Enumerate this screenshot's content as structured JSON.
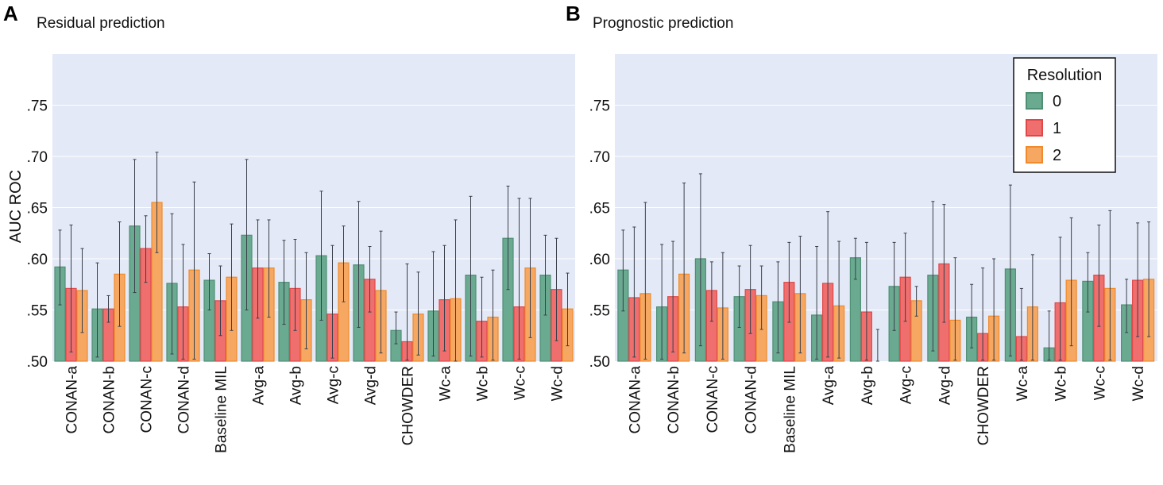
{
  "colors": {
    "plot_bg": "#e3e9f6",
    "grid": "#ffffff",
    "errorbar": "#3a3f4a",
    "series": [
      {
        "fill": "#6aaa91",
        "stroke": "#4f8f74"
      },
      {
        "fill": "#ef6f6f",
        "stroke": "#e04848"
      },
      {
        "fill": "#f6a862",
        "stroke": "#f08a2a"
      }
    ]
  },
  "legend": {
    "title": "Resolution",
    "placement": "top-right of panel B"
  },
  "chart_data": [
    {
      "type": "bar",
      "panel_letter": "A",
      "title": "Residual prediction",
      "xlabel": "",
      "ylabel": "AUC ROC",
      "ylim": [
        0.5,
        0.8
      ],
      "yticks": [
        0.5,
        0.55,
        0.6,
        0.65,
        0.7,
        0.75
      ],
      "ytick_labels": [
        ".50",
        ".55",
        ".60",
        ".65",
        ".70",
        ".75"
      ],
      "grid": true,
      "categories": [
        "CONAN-a",
        "CONAN-b",
        "CONAN-c",
        "CONAN-d",
        "Baseline MIL",
        "Avg-a",
        "Avg-b",
        "Avg-c",
        "Avg-d",
        "CHOWDER",
        "Wc-a",
        "Wc-b",
        "Wc-c",
        "Wc-d"
      ],
      "series": [
        {
          "name": "0",
          "values": [
            0.592,
            0.551,
            0.632,
            0.576,
            0.579,
            0.623,
            0.577,
            0.603,
            0.594,
            0.53,
            0.549,
            0.584,
            0.62,
            0.584
          ],
          "err_low": [
            0.555,
            0.504,
            0.567,
            0.507,
            0.55,
            0.55,
            0.536,
            0.54,
            0.533,
            0.517,
            0.505,
            0.505,
            0.57,
            0.545
          ],
          "err_high": [
            0.628,
            0.596,
            0.697,
            0.644,
            0.605,
            0.697,
            0.618,
            0.666,
            0.656,
            0.548,
            0.607,
            0.661,
            0.671,
            0.623
          ]
        },
        {
          "name": "1",
          "values": [
            0.571,
            0.551,
            0.61,
            0.553,
            0.559,
            0.591,
            0.571,
            0.546,
            0.58,
            0.519,
            0.56,
            0.539,
            0.553,
            0.57
          ],
          "err_low": [
            0.509,
            0.538,
            0.577,
            0.502,
            0.525,
            0.542,
            0.53,
            0.503,
            0.548,
            0.501,
            0.51,
            0.504,
            0.502,
            0.52
          ],
          "err_high": [
            0.633,
            0.564,
            0.642,
            0.614,
            0.593,
            0.638,
            0.619,
            0.613,
            0.612,
            0.595,
            0.613,
            0.582,
            0.659,
            0.62
          ]
        },
        {
          "name": "2",
          "values": [
            0.569,
            0.585,
            0.655,
            0.589,
            0.582,
            0.591,
            0.56,
            0.596,
            0.569,
            0.546,
            0.561,
            0.543,
            0.591,
            0.551
          ],
          "err_low": [
            0.528,
            0.534,
            0.606,
            0.502,
            0.53,
            0.543,
            0.512,
            0.558,
            0.508,
            0.506,
            0.5,
            0.501,
            0.523,
            0.515
          ],
          "err_high": [
            0.61,
            0.636,
            0.704,
            0.675,
            0.634,
            0.638,
            0.606,
            0.632,
            0.627,
            0.587,
            0.638,
            0.589,
            0.659,
            0.586
          ]
        }
      ]
    },
    {
      "type": "bar",
      "panel_letter": "B",
      "title": "Prognostic prediction",
      "xlabel": "",
      "ylabel": "",
      "ylim": [
        0.5,
        0.8
      ],
      "yticks": [
        0.5,
        0.55,
        0.6,
        0.65,
        0.7,
        0.75
      ],
      "ytick_labels": [
        ".50",
        ".55",
        ".60",
        ".65",
        ".70",
        ".75"
      ],
      "grid": true,
      "categories": [
        "CONAN-a",
        "CONAN-b",
        "CONAN-c",
        "CONAN-d",
        "Baseline MIL",
        "Avg-a",
        "Avg-b",
        "Avg-c",
        "Avg-d",
        "CHOWDER",
        "Wc-a",
        "Wc-b",
        "Wc-c",
        "Wc-d"
      ],
      "series": [
        {
          "name": "0",
          "values": [
            0.589,
            0.553,
            0.6,
            0.563,
            0.558,
            0.545,
            0.601,
            0.573,
            0.584,
            0.543,
            0.59,
            0.513,
            0.578,
            0.555
          ],
          "err_low": [
            0.549,
            0.502,
            0.515,
            0.533,
            0.508,
            0.502,
            0.58,
            0.53,
            0.51,
            0.513,
            0.505,
            0.501,
            0.548,
            0.528
          ],
          "err_high": [
            0.628,
            0.614,
            0.683,
            0.593,
            0.597,
            0.612,
            0.62,
            0.616,
            0.656,
            0.575,
            0.672,
            0.549,
            0.606,
            0.58
          ]
        },
        {
          "name": "1",
          "values": [
            0.562,
            0.563,
            0.569,
            0.57,
            0.577,
            0.576,
            0.548,
            0.582,
            0.595,
            0.527,
            0.524,
            0.557,
            0.584,
            0.579
          ],
          "err_low": [
            0.504,
            0.509,
            0.539,
            0.527,
            0.538,
            0.504,
            0.501,
            0.539,
            0.538,
            0.501,
            0.501,
            0.501,
            0.534,
            0.524
          ],
          "err_high": [
            0.631,
            0.617,
            0.597,
            0.613,
            0.616,
            0.646,
            0.616,
            0.625,
            0.653,
            0.591,
            0.571,
            0.621,
            0.633,
            0.635
          ]
        },
        {
          "name": "2",
          "values": [
            0.566,
            0.585,
            0.552,
            0.564,
            0.566,
            0.554,
            0.5,
            0.559,
            0.54,
            0.544,
            0.553,
            0.579,
            0.571,
            0.58
          ],
          "err_low": [
            0.502,
            0.508,
            0.502,
            0.531,
            0.508,
            0.503,
            0.5,
            0.544,
            0.501,
            0.501,
            0.501,
            0.515,
            0.501,
            0.524
          ],
          "err_high": [
            0.655,
            0.674,
            0.606,
            0.593,
            0.622,
            0.617,
            0.531,
            0.573,
            0.601,
            0.6,
            0.604,
            0.64,
            0.647,
            0.636
          ]
        }
      ]
    }
  ]
}
